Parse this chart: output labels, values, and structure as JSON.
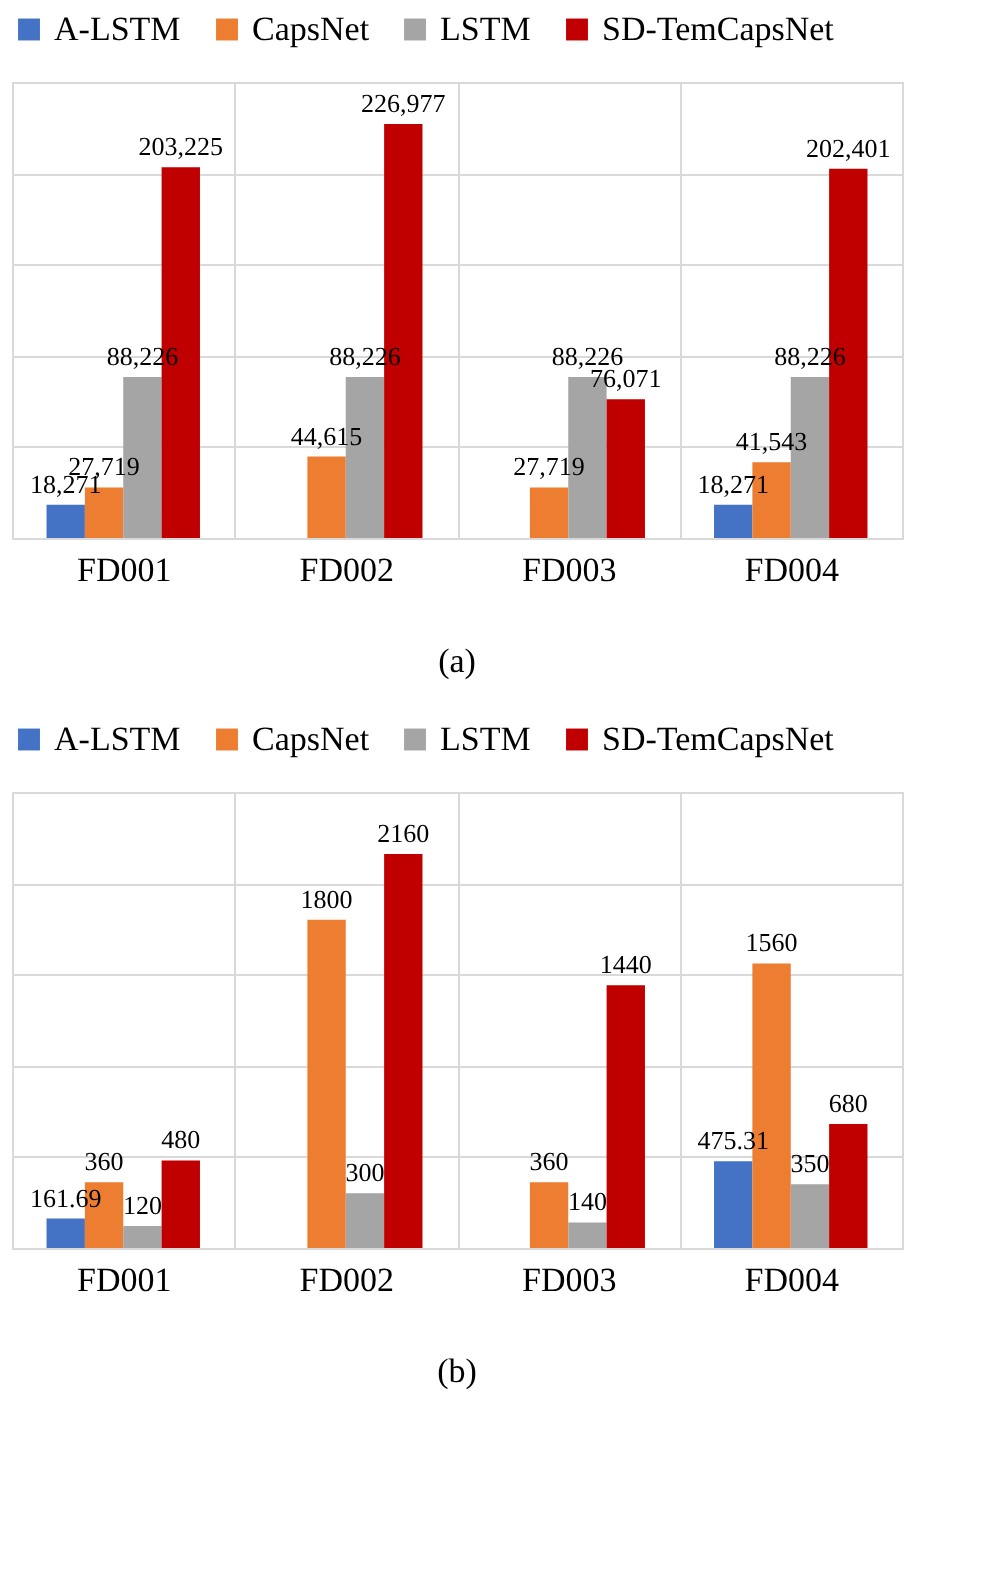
{
  "chart_data": [
    {
      "type": "bar",
      "categories": [
        "FD001",
        "FD002",
        "FD003",
        "FD004"
      ],
      "ylim": [
        0,
        250000
      ],
      "yticks": [
        {
          "value": 0,
          "label": null
        },
        {
          "value": 50000,
          "label": null
        },
        {
          "value": 100000,
          "label": null
        },
        {
          "value": 150000,
          "label": null
        },
        {
          "value": 200000,
          "label": null
        },
        {
          "value": 250000,
          "label": null
        }
      ],
      "grid": true,
      "legend": "top",
      "tick_labels": "x",
      "annotations": [
        "(a)"
      ],
      "series": [
        {
          "name": "A-LSTM",
          "color": "#4472c4",
          "values": [
            18271,
            null,
            null,
            18271
          ],
          "value_labels": [
            "18,271",
            null,
            null,
            "18,271"
          ]
        },
        {
          "name": "CapsNet",
          "color": "#ed7d31",
          "values": [
            27719,
            44615,
            27719,
            41543
          ],
          "value_labels": [
            "27,719",
            "44,615",
            "27,719",
            "41,543"
          ]
        },
        {
          "name": "LSTM",
          "color": "#a5a5a5",
          "values": [
            88226,
            88226,
            88226,
            88226
          ],
          "value_labels": [
            "88,226",
            "88,226",
            "88,226",
            "88,226"
          ]
        },
        {
          "name": "SD-TemCapsNet",
          "color": "#c00000",
          "values": [
            203225,
            226977,
            76071,
            202401
          ],
          "value_labels": [
            "203,225",
            "226,977",
            "76,071",
            "202,401"
          ]
        }
      ]
    },
    {
      "type": "bar",
      "categories": [
        "FD001",
        "FD002",
        "FD003",
        "FD004"
      ],
      "ylim": [
        0,
        2500
      ],
      "yticks": [
        {
          "value": 0,
          "label": null
        },
        {
          "value": 500,
          "label": null
        },
        {
          "value": 1000,
          "label": null
        },
        {
          "value": 1500,
          "label": null
        },
        {
          "value": 2000,
          "label": null
        },
        {
          "value": 2500,
          "label": null
        }
      ],
      "grid": true,
      "legend": "top",
      "tick_labels": "x",
      "annotations": [
        "(b)"
      ],
      "series": [
        {
          "name": "A-LSTM",
          "color": "#4472c4",
          "values": [
            161.69,
            null,
            null,
            475.31
          ],
          "value_labels": [
            "161.69",
            null,
            null,
            "475.31"
          ]
        },
        {
          "name": "CapsNet",
          "color": "#ed7d31",
          "values": [
            360,
            1800,
            360,
            1560
          ],
          "value_labels": [
            "360",
            "1800",
            "360",
            "1560"
          ]
        },
        {
          "name": "LSTM",
          "color": "#a5a5a5",
          "values": [
            120,
            300,
            140,
            350
          ],
          "value_labels": [
            "120",
            "300",
            "140",
            "350"
          ]
        },
        {
          "name": "SD-TemCapsNet",
          "color": "#c00000",
          "values": [
            480,
            2160,
            1440,
            680
          ],
          "value_labels": [
            "480",
            "2160",
            "1440",
            "680"
          ]
        }
      ]
    }
  ]
}
